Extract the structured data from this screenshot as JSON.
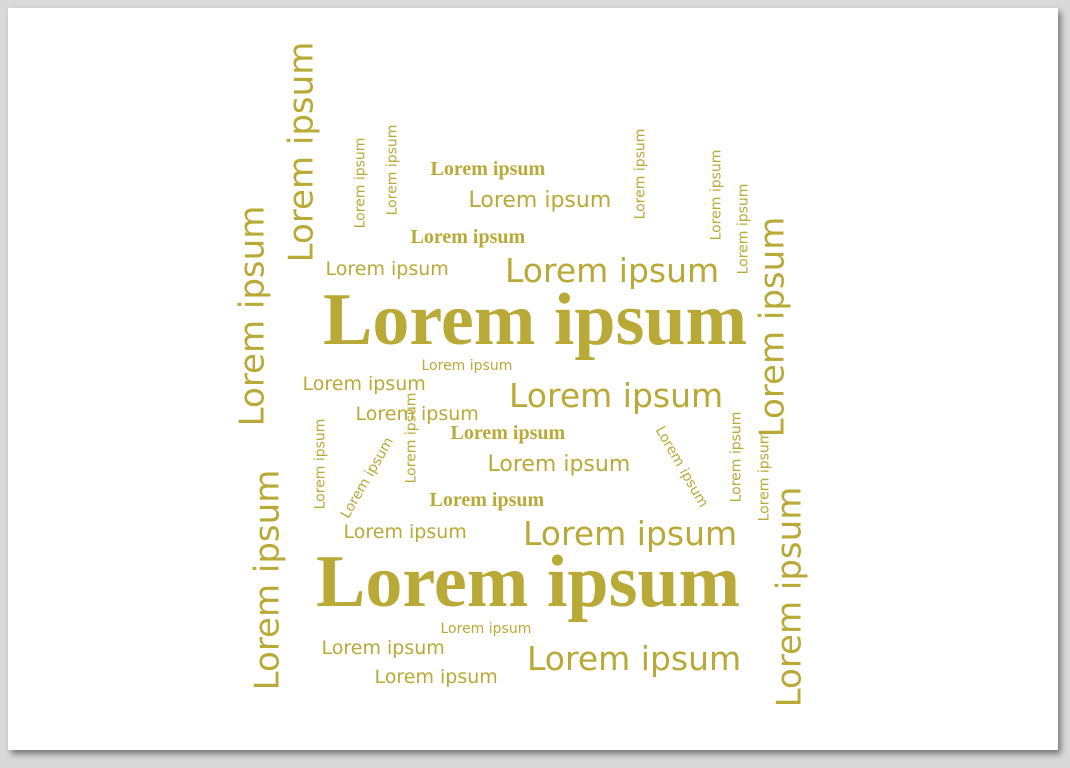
{
  "word": "Lorem ipsum",
  "colors": {
    "text": "#b9a937",
    "page": "#ffffff",
    "background": "#d9d9d9"
  },
  "words": [
    "Lorem ipsum",
    "Lorem ipsum",
    "Lorem ipsum",
    "Lorem ipsum",
    "Lorem ipsum",
    "Lorem ipsum",
    "Lorem ipsum",
    "Lorem ipsum",
    "Lorem ipsum",
    "Lorem ipsum",
    "Lorem ipsum",
    "Lorem ipsum",
    "Lorem ipsum",
    "Lorem ipsum",
    "Lorem ipsum",
    "Lorem ipsum",
    "Lorem ipsum",
    "Lorem ipsum",
    "Lorem ipsum",
    "Lorem ipsum",
    "Lorem ipsum",
    "Lorem ipsum",
    "Lorem ipsum",
    "Lorem ipsum",
    "Lorem ipsum",
    "Lorem ipsum",
    "Lorem ipsum",
    "Lorem ipsum",
    "Lorem ipsum",
    "Lorem ipsum",
    "Lorem ipsum",
    "Lorem ipsum",
    "Lorem ipsum",
    "Lorem ipsum",
    "Lorem ipsum",
    "Lorem ipsum",
    "Lorem ipsum",
    "Lorem ipsum",
    "Lorem ipsum",
    "Lorem ipsum",
    "Lorem ipsum"
  ]
}
